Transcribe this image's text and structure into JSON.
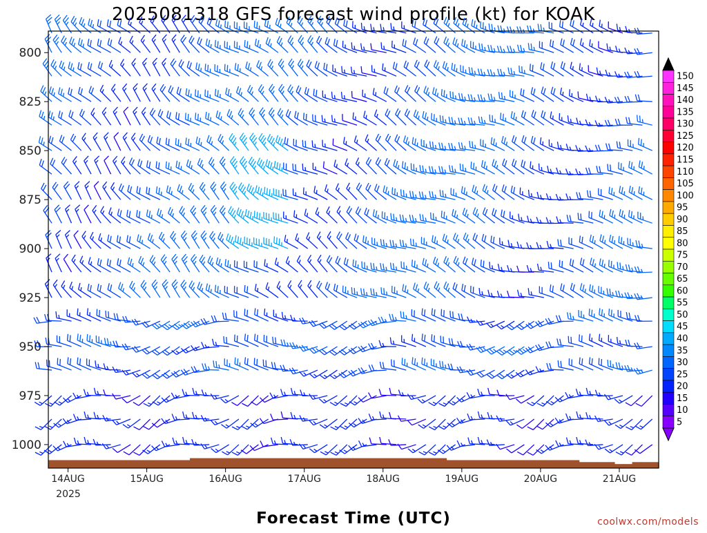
{
  "chart_data": {
    "type": "wind-barb-profile",
    "title": "2025081318 GFS forecast wind profile (kt) for KOAK",
    "xlabel": "Forecast Time (UTC)",
    "ylabel": "",
    "credit": "coolwx.com/models",
    "x_start_label_year": "2025",
    "x_ticks": [
      "14AUG",
      "15AUG",
      "16AUG",
      "17AUG",
      "18AUG",
      "19AUG",
      "20AUG",
      "21AUG"
    ],
    "y_axis": {
      "ticks": [
        800,
        825,
        850,
        875,
        900,
        925,
        950,
        975,
        1000
      ],
      "range": [
        789,
        1012
      ],
      "inverted": true,
      "units": "hPa"
    },
    "x_axis": {
      "unit": "forecast hours from 2025-08-13 18Z",
      "range": [
        0,
        186
      ],
      "first_tick": 6,
      "tick_step": 24
    },
    "levels": [
      790,
      800,
      812,
      825,
      837,
      850,
      862,
      875,
      887,
      900,
      912,
      925,
      937,
      950,
      962,
      975,
      987,
      1000
    ],
    "time_step_hours": 3,
    "surface_pressure_hPa": [
      1003,
      1003,
      1003,
      1003,
      1003,
      1003,
      1003,
      1003,
      1003,
      1003,
      1003,
      1003,
      1003,
      1003,
      1003,
      1003,
      1002,
      1002,
      1002,
      1002,
      1002,
      1002,
      1002,
      1002,
      1002,
      1002,
      1002,
      1002,
      1002,
      1002,
      1002,
      1002,
      1002,
      1002,
      1002,
      1002,
      1002,
      1002,
      1002,
      1002,
      1002,
      1002,
      1002,
      1002,
      1002,
      1003,
      1003,
      1003,
      1003,
      1003,
      1003,
      1003,
      1003,
      1003,
      1003,
      1003,
      1003,
      1003,
      1003,
      1003,
      1004,
      1004,
      1004,
      1004,
      1005,
      1005,
      1004,
      1004,
      1004
    ],
    "colorbar": {
      "ticks": [
        150,
        145,
        140,
        135,
        130,
        125,
        120,
        115,
        110,
        105,
        100,
        95,
        90,
        85,
        80,
        75,
        70,
        65,
        60,
        55,
        50,
        45,
        40,
        35,
        30,
        25,
        20,
        15,
        10,
        5
      ],
      "colors": [
        "#ff33ff",
        "#ff22dd",
        "#ff11bb",
        "#ff0099",
        "#ff0066",
        "#ff0033",
        "#ff0000",
        "#ff2200",
        "#ff4400",
        "#ff6600",
        "#ff8800",
        "#ffaa00",
        "#ffcc00",
        "#ffee00",
        "#ffff00",
        "#ccff00",
        "#99ff00",
        "#66ff00",
        "#33ff00",
        "#00ff66",
        "#00ffcc",
        "#00ddff",
        "#00aaff",
        "#0088ff",
        "#0066ff",
        "#0044ff",
        "#0022ff",
        "#2200ff",
        "#5500ff",
        "#8800ff"
      ],
      "extend_top": "#000000",
      "extend_bottom": "#8800ff"
    },
    "terrain_color": "#a0522d",
    "plot_frame_color": "#000000"
  }
}
